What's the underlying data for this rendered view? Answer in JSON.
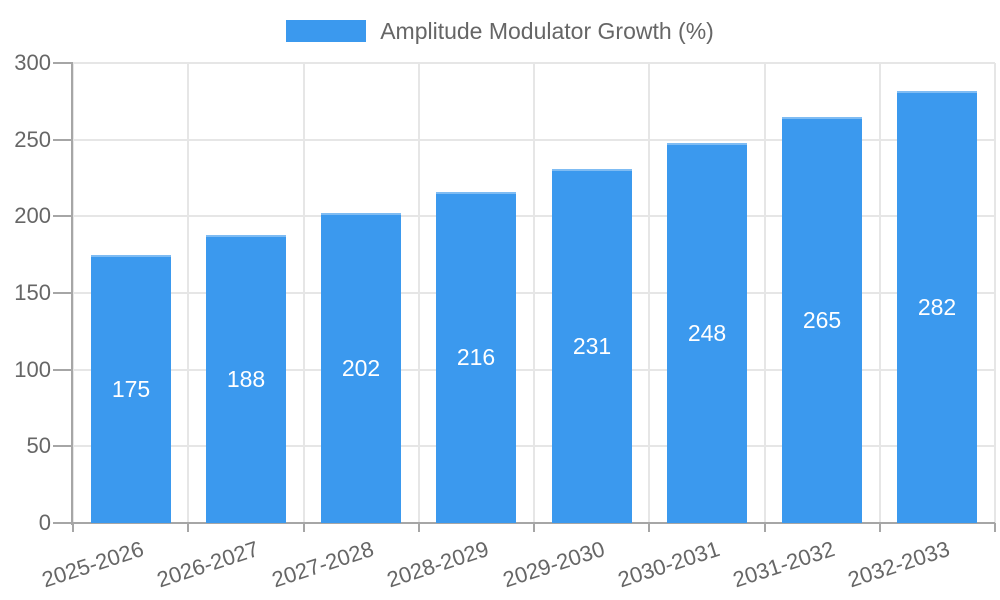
{
  "legend": {
    "label": "Amplitude Modulator Growth (%)",
    "swatch_color": "#3b99ee"
  },
  "chart_data": {
    "type": "bar",
    "title": "Amplitude Modulator Growth (%)",
    "categories": [
      "2025-2026",
      "2026-2027",
      "2027-2028",
      "2028-2029",
      "2029-2030",
      "2030-2031",
      "2031-2032",
      "2032-2033"
    ],
    "series": [
      {
        "name": "Amplitude Modulator Growth (%)",
        "values": [
          175,
          188,
          202,
          216,
          231,
          248,
          265,
          282
        ]
      }
    ],
    "value_labels": [
      "175",
      "188",
      "202",
      "216",
      "231",
      "248",
      "265",
      "282"
    ],
    "xlabel": "",
    "ylabel": "",
    "ylim": [
      0,
      300
    ],
    "yticks": [
      0,
      50,
      100,
      150,
      200,
      250,
      300
    ],
    "grid": true,
    "legend_position": "top",
    "x_label_rotation_deg": -18,
    "colors": {
      "bar": "#3b99ee",
      "bar_top_edge": "#7fbcf3",
      "grid": "#e6e6e6",
      "axis": "#a6a6a6",
      "tick_label": "#666666",
      "value_label": "#ffffff",
      "legend_text": "#666666"
    }
  }
}
